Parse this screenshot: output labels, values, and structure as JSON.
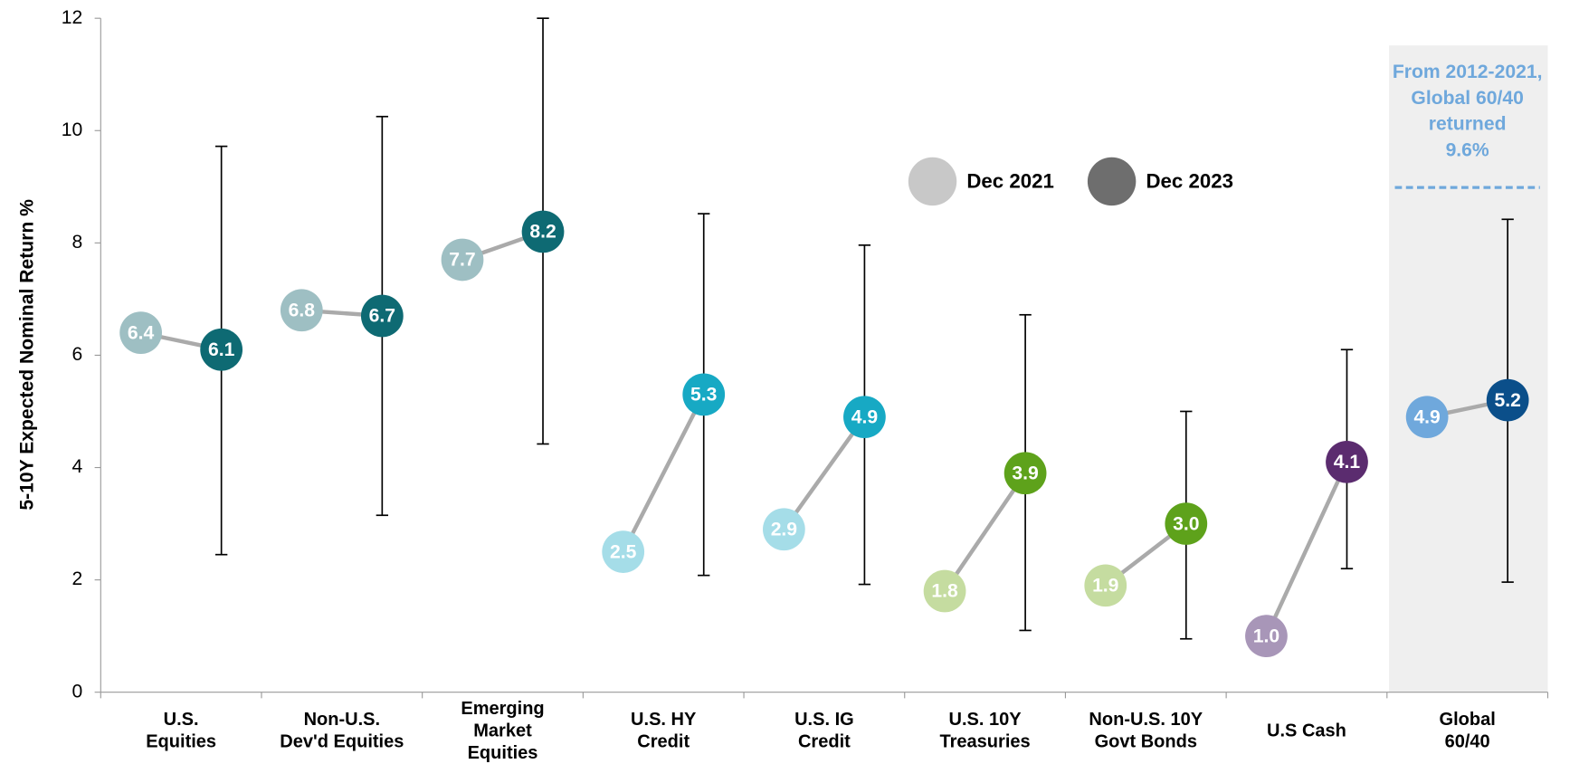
{
  "chart_data": {
    "type": "dot-range",
    "y_label": "5-10Y Expected Nominal Return %",
    "categories": [
      [
        "U.S.",
        "Equities"
      ],
      [
        "Non-U.S.",
        "Dev'd Equities"
      ],
      [
        "Emerging",
        "Market",
        "Equities"
      ],
      [
        "U.S. HY",
        "Credit"
      ],
      [
        "U.S. IG",
        "Credit"
      ],
      [
        "U.S. 10Y",
        "Treasuries"
      ],
      [
        "Non-U.S. 10Y",
        "Govt Bonds"
      ],
      [
        "U.S Cash"
      ],
      [
        "Global",
        "60/40"
      ]
    ],
    "series": [
      {
        "name": "Dec 2021",
        "color": "#c8c8c8",
        "point_colors": [
          "#9ebfc3",
          "#9ebfc3",
          "#9ebfc3",
          "#a5dde8",
          "#a5dde8",
          "#c5dca0",
          "#c5dca0",
          "#a896b8",
          "#6fa8dc"
        ],
        "values": [
          6.4,
          6.8,
          7.7,
          2.5,
          2.9,
          1.8,
          1.9,
          1.0,
          4.9
        ],
        "value_labels": [
          "6.4",
          "6.8",
          "7.7",
          "2.5",
          "2.9",
          "1.8",
          "1.9",
          "1.0",
          "4.9"
        ]
      },
      {
        "name": "Dec 2023",
        "color": "#6e6e6e",
        "point_colors": [
          "#0e6a73",
          "#0e6a73",
          "#0e6a73",
          "#17a9c4",
          "#17a9c4",
          "#5ea21b",
          "#5ea21b",
          "#5b2c6f",
          "#0b4f8a"
        ],
        "values": [
          6.1,
          6.7,
          8.2,
          5.3,
          4.9,
          3.9,
          3.0,
          4.1,
          5.2
        ],
        "value_labels": [
          "6.1",
          "6.7",
          "8.2",
          "5.3",
          "4.9",
          "3.9",
          "3.0",
          "4.1",
          "5.2"
        ],
        "ranges": [
          [
            2.45,
            9.72
          ],
          [
            3.15,
            10.25
          ],
          [
            4.42,
            12
          ],
          [
            2.08,
            8.52
          ],
          [
            1.92,
            7.96
          ],
          [
            1.1,
            6.72
          ],
          [
            0.95,
            5.0
          ],
          [
            2.2,
            6.1
          ],
          [
            1.96,
            8.42
          ]
        ]
      }
    ],
    "annotation": [
      "From 2012-2021,",
      "Global 60/40",
      "returned",
      "9.6%"
    ],
    "annotation_color": "#6fa8dc",
    "ylim": [
      0,
      12
    ],
    "yticks": [
      0,
      2,
      4,
      6,
      8,
      10,
      12
    ]
  }
}
